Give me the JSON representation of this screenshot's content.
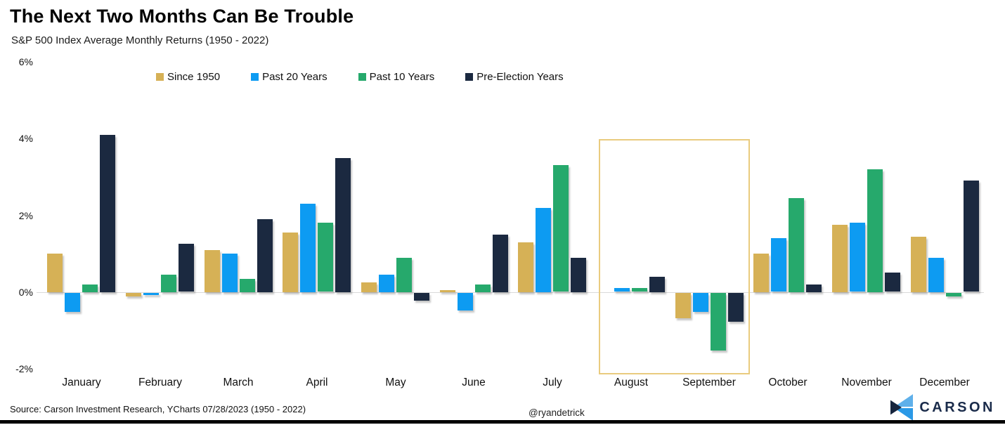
{
  "title": "The Next Two Months Can Be Trouble",
  "subtitle": "S&P 500 Index Average Monthly Returns (1950 - 2022)",
  "chart_data": {
    "type": "bar",
    "title": "The Next Two Months Can Be Trouble",
    "subtitle": "S&P 500 Index Average Monthly Returns (1950 - 2022)",
    "categories": [
      "January",
      "February",
      "March",
      "April",
      "May",
      "June",
      "July",
      "August",
      "September",
      "October",
      "November",
      "December"
    ],
    "series": [
      {
        "name": "Since 1950",
        "color": "#d6b156",
        "values": [
          1.0,
          -0.1,
          1.1,
          1.55,
          0.25,
          0.05,
          1.3,
          0.0,
          -0.65,
          1.0,
          1.75,
          1.45
        ]
      },
      {
        "name": "Past 20 Years",
        "color": "#0d9bf2",
        "values": [
          -0.5,
          -0.05,
          1.0,
          2.3,
          0.45,
          -0.45,
          2.2,
          0.1,
          -0.5,
          1.4,
          1.8,
          0.9
        ]
      },
      {
        "name": "Past 10 Years",
        "color": "#26a96c",
        "values": [
          0.2,
          0.45,
          0.35,
          1.8,
          0.9,
          0.2,
          3.3,
          0.1,
          -1.5,
          2.45,
          3.2,
          -0.1
        ]
      },
      {
        "name": "Pre-Election Years",
        "color": "#1b2940",
        "values": [
          4.1,
          1.25,
          1.9,
          3.5,
          -0.2,
          1.5,
          0.9,
          0.4,
          -0.75,
          0.2,
          0.5,
          2.9
        ]
      }
    ],
    "ylabel": "",
    "xlabel": "",
    "ylim": [
      -2,
      6
    ],
    "y_ticks": [
      {
        "label": "6%",
        "value": 6
      },
      {
        "label": "4%",
        "value": 4
      },
      {
        "label": "2%",
        "value": 2
      },
      {
        "label": "0%",
        "value": 0
      },
      {
        "label": "-2%",
        "value": -2
      }
    ],
    "grid": false,
    "legend_position": "top",
    "highlight": {
      "from": "August",
      "to": "September",
      "border_color": "#e9cb7e"
    }
  },
  "footer": {
    "source": "Source: Carson Investment Research, YCharts 07/28/2023 (1950 - 2022)",
    "handle": "@ryandetrick",
    "brand": "CARSON"
  },
  "colors": {
    "axis_line": "#d9d9d9",
    "bottom_bar": "#010101",
    "logo_navy": "#1a2b4a",
    "logo_light_blue": "#5fb0ea",
    "logo_blue": "#2b99e6"
  }
}
